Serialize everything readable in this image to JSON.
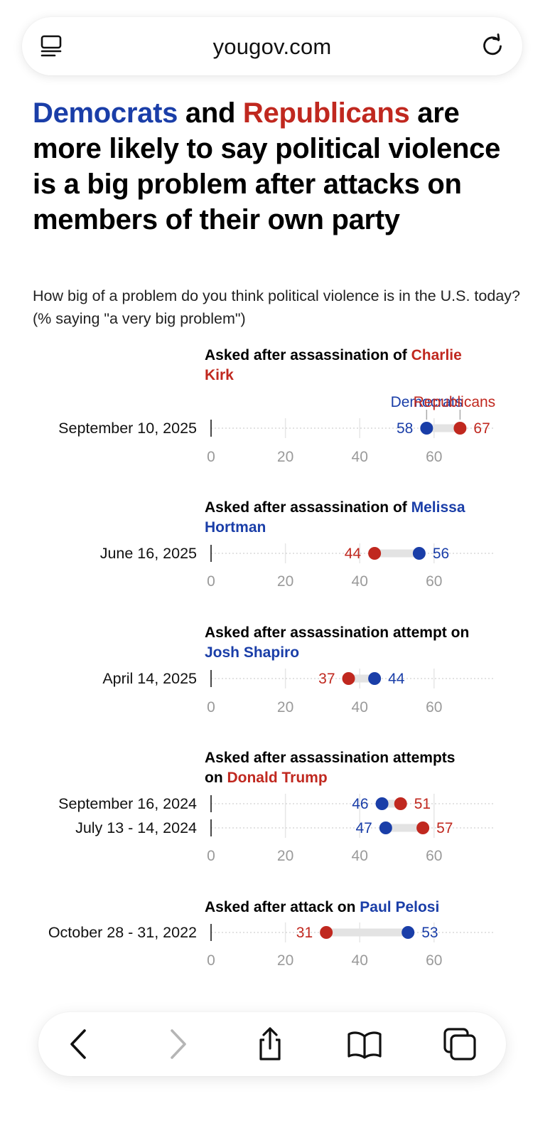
{
  "browser": {
    "url": "yougov.com",
    "icons": {
      "tabs": "tabs-icon",
      "reload": "reload-icon"
    },
    "nav": [
      "back-icon",
      "forward-icon",
      "share-icon",
      "bookmarks-icon",
      "tabs-overview-icon"
    ]
  },
  "headline": {
    "part1": "Democrats",
    "part2": " and ",
    "part3": "Republicans",
    "part4": " are more likely to say political violence is a big problem after attacks on members of their own party"
  },
  "subtitle": "How big of a problem do you think political violence is in the U.S. today? (% saying \"a very big problem\")",
  "colors": {
    "democrat": "#1a3ea8",
    "republican": "#c0281f",
    "bar": "#e3e3e3",
    "axis": "#9a9a9a"
  },
  "chart_data": {
    "type": "dumbbell",
    "title": "Democrats and Republicans are more likely to say political violence is a big problem after attacks on members of their own party",
    "xlim": [
      0,
      75
    ],
    "ticks": [
      0,
      20,
      40,
      60
    ],
    "legend": {
      "dem": "Democrats",
      "rep": "Republicans"
    },
    "series_names": [
      "Democrats",
      "Republicans"
    ],
    "groups": [
      {
        "prefix": "Asked after assassination of ",
        "name": "Charlie Kirk",
        "party": "rep",
        "rows": [
          {
            "date": "September 10, 2025",
            "dem": 58,
            "rep": 67
          }
        ]
      },
      {
        "prefix": "Asked after assassination of ",
        "name": "Melissa Hortman",
        "party": "dem",
        "rows": [
          {
            "date": "June 16, 2025",
            "dem": 56,
            "rep": 44
          }
        ]
      },
      {
        "prefix": "Asked after assassination attempt on ",
        "name": "Josh Shapiro",
        "party": "dem",
        "rows": [
          {
            "date": "April 14, 2025",
            "dem": 44,
            "rep": 37
          }
        ]
      },
      {
        "prefix": "Asked after assassination attempts on ",
        "name": "Donald Trump",
        "party": "rep",
        "rows": [
          {
            "date": "September 16, 2024",
            "dem": 46,
            "rep": 51
          },
          {
            "date": "July 13 - 14, 2024",
            "dem": 47,
            "rep": 57
          }
        ]
      },
      {
        "prefix": "Asked after attack on ",
        "name": "Paul Pelosi",
        "party": "dem",
        "rows": [
          {
            "date": "October 28 - 31, 2022",
            "dem": 53,
            "rep": 31
          }
        ]
      }
    ]
  }
}
